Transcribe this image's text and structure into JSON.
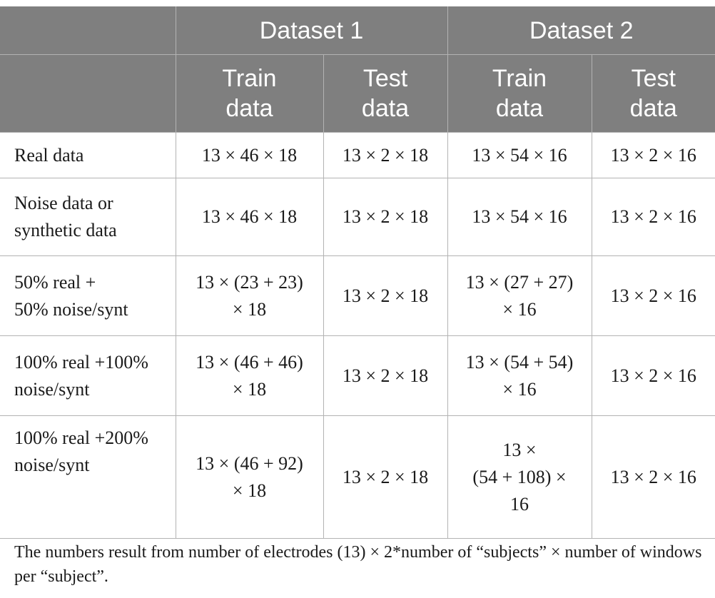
{
  "header": {
    "dataset1": "Dataset 1",
    "dataset2": "Dataset 2",
    "train_1": "Train",
    "train_2": "data",
    "test_1": "Test",
    "test_2": "data"
  },
  "rows": [
    {
      "label": [
        "Real data"
      ],
      "d1_train": [
        "13 × 46 × 18"
      ],
      "d1_test": "13 × 2 × 18",
      "d2_train": [
        "13 × 54 × 16"
      ],
      "d2_test": "13 × 2 × 16"
    },
    {
      "label": [
        "Noise data or",
        "synthetic data"
      ],
      "d1_train": [
        "13 × 46 × 18"
      ],
      "d1_test": "13 × 2 × 18",
      "d2_train": [
        "13 × 54 × 16"
      ],
      "d2_test": "13 × 2 × 16"
    },
    {
      "label": [
        "50% real +",
        "50% noise/synt"
      ],
      "d1_train": [
        "13 × (23 + 23)",
        "× 18"
      ],
      "d1_test": "13 × 2 × 18",
      "d2_train": [
        "13 × (27 + 27)",
        "× 16"
      ],
      "d2_test": "13 × 2 × 16"
    },
    {
      "label": [
        "100% real +100%",
        "noise/synt"
      ],
      "d1_train": [
        "13 × (46 + 46)",
        "× 18"
      ],
      "d1_test": "13 × 2 × 18",
      "d2_train": [
        "13 × (54 + 54)",
        "× 16"
      ],
      "d2_test": "13 × 2 × 16"
    },
    {
      "label": [
        "100% real +200%",
        "noise/synt"
      ],
      "d1_train": [
        "13 × (46 + 92)",
        "× 18"
      ],
      "d1_test": "13 × 2 × 18",
      "d2_train": [
        "13 ×",
        "(54 + 108) ×",
        "16"
      ],
      "d2_test": "13 × 2 × 16"
    }
  ],
  "footnote": "The numbers result from number of electrodes (13) × 2*number of “subjects” × number of windows per “subject”."
}
